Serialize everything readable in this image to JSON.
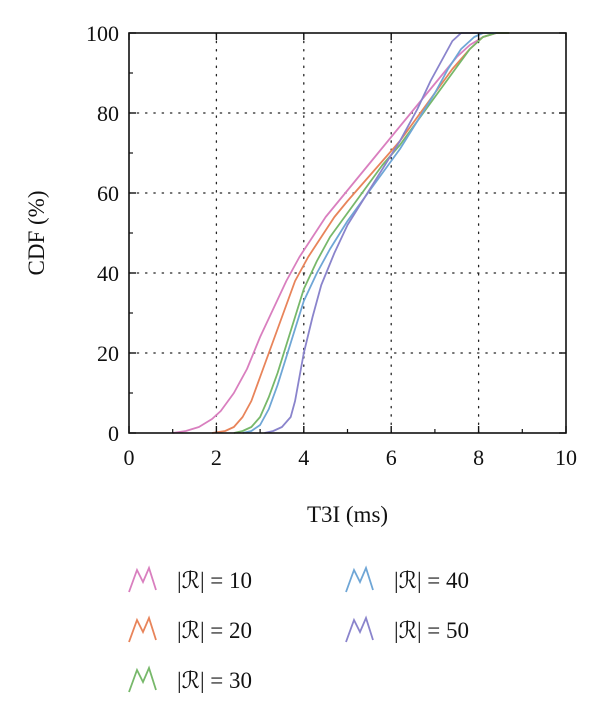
{
  "chart_data": {
    "type": "line",
    "xlabel": "T3I (ms)",
    "ylabel": "CDF (%)",
    "xlim": [
      0,
      10
    ],
    "ylim": [
      0,
      100
    ],
    "xticks": [
      0,
      2,
      4,
      6,
      8,
      10
    ],
    "yticks": [
      0,
      20,
      40,
      60,
      80,
      100
    ],
    "xtick_labels": [
      "0",
      "2",
      "4",
      "6",
      "8",
      "10"
    ],
    "ytick_labels": [
      "0",
      "20",
      "40",
      "60",
      "80",
      "100"
    ],
    "grid": "dotted",
    "legend_position": "bottom",
    "series": [
      {
        "name": "|ℛ| = 10",
        "color": "#d97fbf",
        "x": [
          1.0,
          1.3,
          1.6,
          1.9,
          2.1,
          2.4,
          2.7,
          3.0,
          3.3,
          3.6,
          3.9,
          4.2,
          4.5,
          4.8,
          5.1,
          5.4,
          5.7,
          6.0,
          6.3,
          6.6,
          6.9,
          7.2,
          7.5,
          7.8,
          8.1,
          8.4,
          8.7
        ],
        "y": [
          0,
          0.5,
          1.5,
          3.5,
          5.5,
          10,
          16,
          24,
          31,
          38,
          44,
          49,
          54,
          58,
          62,
          66,
          70,
          74,
          78,
          82,
          86,
          90,
          94,
          97,
          99,
          100,
          100
        ]
      },
      {
        "name": "|ℛ| = 20",
        "color": "#e8845a",
        "x": [
          1.9,
          2.2,
          2.4,
          2.6,
          2.8,
          3.0,
          3.2,
          3.4,
          3.6,
          3.8,
          4.1,
          4.4,
          4.7,
          5.0,
          5.4,
          5.8,
          6.2,
          6.6,
          7.0,
          7.4,
          7.8,
          8.1,
          8.4,
          8.7
        ],
        "y": [
          0,
          0.5,
          1.5,
          4,
          8,
          14,
          20,
          26,
          32,
          38,
          44,
          49,
          54,
          58,
          63,
          68,
          73,
          79,
          85,
          91,
          96,
          99,
          100,
          100
        ]
      },
      {
        "name": "|ℛ| = 30",
        "color": "#77b86a",
        "x": [
          2.4,
          2.6,
          2.8,
          3.0,
          3.2,
          3.4,
          3.6,
          3.8,
          4.0,
          4.3,
          4.6,
          5.0,
          5.4,
          5.8,
          6.2,
          6.6,
          7.0,
          7.4,
          7.8,
          8.1,
          8.4,
          8.7
        ],
        "y": [
          0,
          0.5,
          1.5,
          4,
          9,
          15,
          22,
          29,
          36,
          43,
          49,
          55,
          61,
          67,
          72,
          78,
          84,
          90,
          96,
          99,
          100,
          100
        ]
      },
      {
        "name": "|ℛ| = 40",
        "color": "#6fa6d6",
        "x": [
          2.6,
          2.8,
          3.0,
          3.2,
          3.4,
          3.6,
          3.8,
          4.0,
          4.3,
          4.6,
          5.0,
          5.4,
          5.8,
          6.2,
          6.6,
          7.0,
          7.3,
          7.6,
          7.9,
          8.1,
          8.4
        ],
        "y": [
          0,
          0.5,
          2,
          6,
          12,
          19,
          26,
          33,
          40,
          46,
          53,
          59,
          65,
          71,
          78,
          85,
          91,
          96,
          99,
          100,
          100
        ]
      },
      {
        "name": "|ℛ| = 50",
        "color": "#8a84cc",
        "x": [
          3.1,
          3.3,
          3.5,
          3.7,
          3.8,
          3.9,
          4.0,
          4.2,
          4.4,
          4.7,
          5.0,
          5.4,
          5.8,
          6.2,
          6.6,
          6.9,
          7.2,
          7.4,
          7.6,
          7.8,
          8.1
        ],
        "y": [
          0,
          0.5,
          1.5,
          4,
          8,
          14,
          20,
          29,
          37,
          45,
          52,
          59,
          66,
          73,
          81,
          88,
          94,
          98,
          100,
          100,
          100
        ]
      }
    ]
  }
}
